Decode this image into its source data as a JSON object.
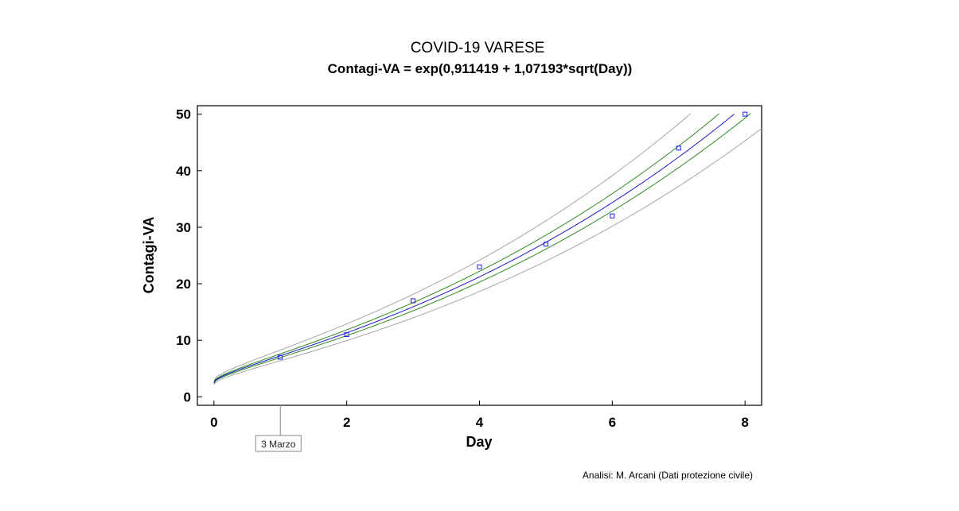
{
  "chart_data": {
    "type": "scatter",
    "title": "COVID-19 VARESE",
    "subtitle": "Contagi-VA = exp(0,911419 + 1,07193*sqrt(Day))",
    "xlabel": "Day",
    "ylabel": "Contagi-VA",
    "xlim": [
      -0.25,
      8.25
    ],
    "ylim": [
      -1.5,
      51.5
    ],
    "xticks": [
      0,
      2,
      4,
      6,
      8
    ],
    "yticks": [
      0,
      10,
      20,
      30,
      40,
      50
    ],
    "grid": false,
    "model": {
      "a": 0.911419,
      "b": 1.07193
    },
    "points": {
      "x": [
        1,
        2,
        3,
        4,
        5,
        6,
        7,
        8
      ],
      "y": [
        7,
        11,
        17,
        23,
        27,
        32,
        44,
        50
      ]
    },
    "bands": {
      "inner_width": 0.045,
      "outer_width": 0.13
    },
    "colors": {
      "points": "#1a1aff",
      "fit": "#1a1acc",
      "confidence": "#2e8b22",
      "prediction": "#a6a6a6"
    },
    "annotation": {
      "label": "3 Marzo",
      "x": 1
    },
    "footnote": "Analisi: M. Arcani (Dati protezione civile)"
  }
}
